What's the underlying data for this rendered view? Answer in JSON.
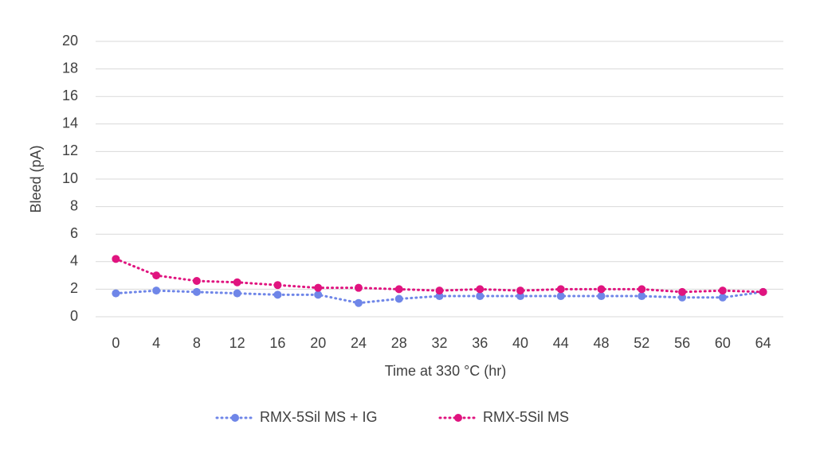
{
  "chart_data": {
    "type": "line",
    "x": [
      0,
      4,
      8,
      12,
      16,
      20,
      24,
      28,
      32,
      36,
      40,
      44,
      48,
      52,
      56,
      60,
      64
    ],
    "xlabel": "Time at 330 °C (hr)",
    "ylabel": "Bleed (pA)",
    "xlim": [
      -2,
      66
    ],
    "xticks": [
      0,
      4,
      8,
      12,
      16,
      20,
      24,
      28,
      32,
      36,
      40,
      44,
      48,
      52,
      56,
      60,
      64
    ],
    "ylim": [
      0,
      20
    ],
    "yticks": [
      0,
      2,
      4,
      6,
      8,
      10,
      12,
      14,
      16,
      18,
      20
    ],
    "grid": true,
    "legend": "bottom",
    "series": [
      {
        "name": "RMX-5Sil MS + IG",
        "color": "#6f86e8",
        "values": [
          1.7,
          1.9,
          1.8,
          1.7,
          1.6,
          1.6,
          1.0,
          1.3,
          1.5,
          1.5,
          1.5,
          1.5,
          1.5,
          1.5,
          1.4,
          1.4,
          1.8
        ]
      },
      {
        "name": "RMX-5Sil MS",
        "color": "#e0147f",
        "values": [
          4.2,
          3.0,
          2.6,
          2.5,
          2.3,
          2.1,
          2.1,
          2.0,
          1.9,
          2.0,
          1.9,
          2.0,
          2.0,
          2.0,
          1.8,
          1.9,
          1.8
        ]
      }
    ]
  }
}
